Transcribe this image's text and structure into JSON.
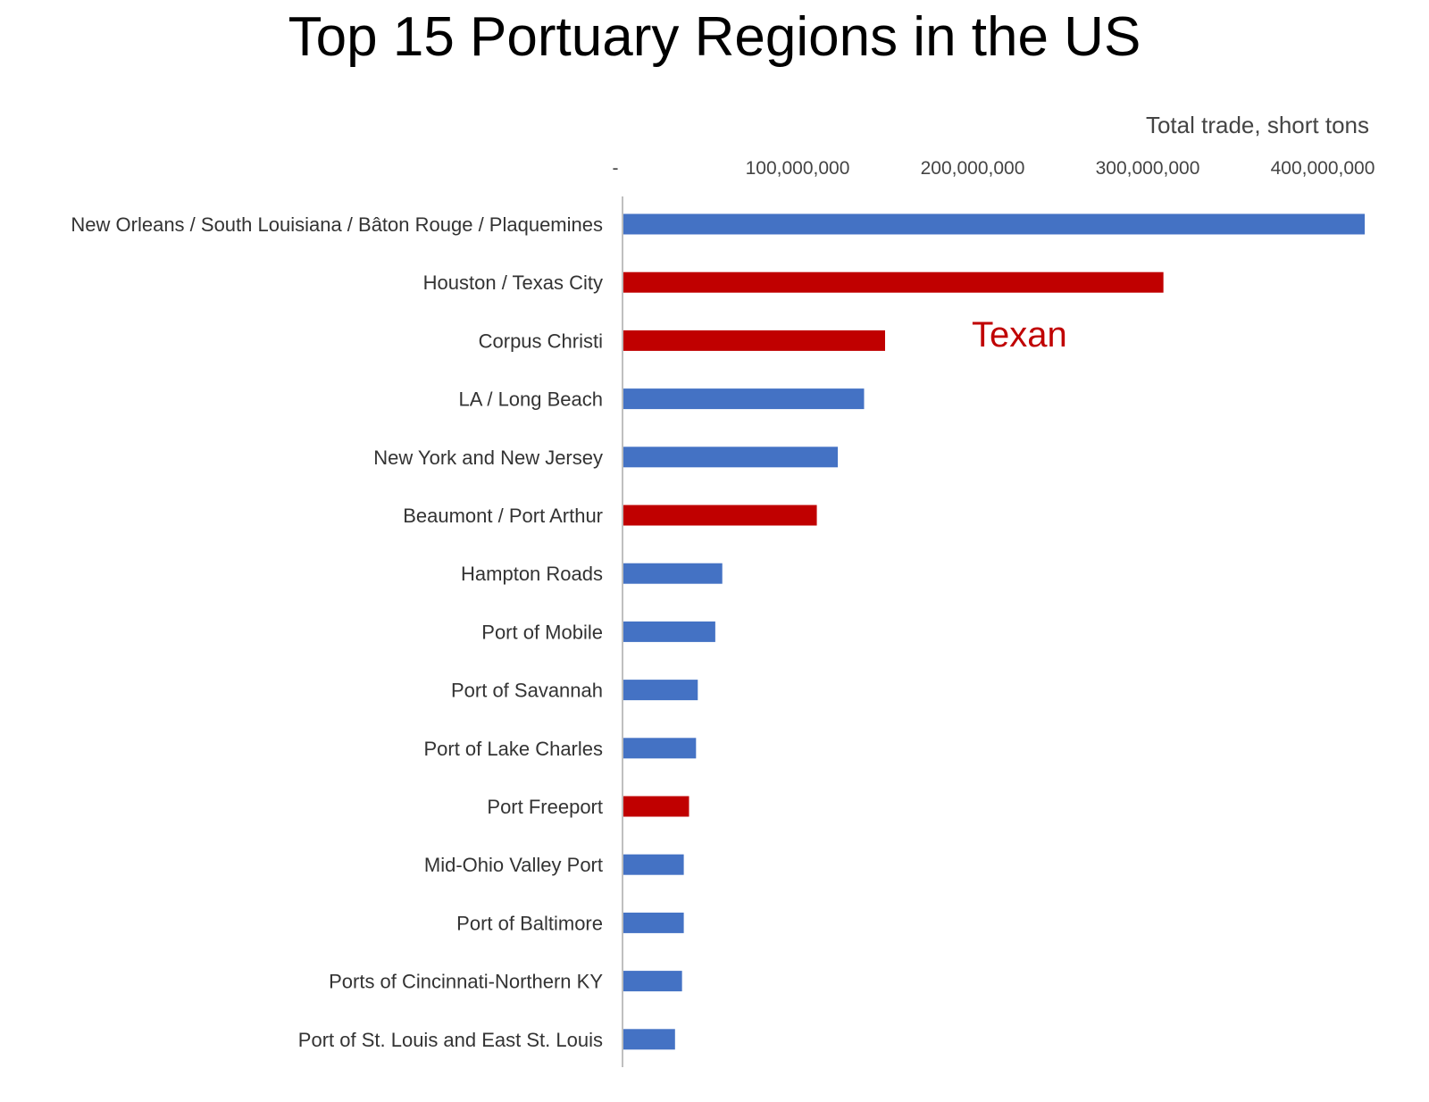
{
  "chart_data": {
    "type": "bar",
    "orientation": "horizontal",
    "title": "Top 15 Portuary Regions in the US",
    "xlabel": "Total trade, short tons",
    "ylabel": "",
    "xlim": [
      0,
      420000000
    ],
    "x_ticks": [
      {
        "value": 0,
        "label": "-"
      },
      {
        "value": 100000000,
        "label": "100,000,000"
      },
      {
        "value": 200000000,
        "label": "200,000,000"
      },
      {
        "value": 300000000,
        "label": "300,000,000"
      },
      {
        "value": 400000000,
        "label": "400,000,000"
      }
    ],
    "grid": false,
    "categories": [
      "New Orleans / South Louisiana / Bâton Rouge / Plaquemines",
      "Houston / Texas City",
      "Corpus Christi",
      "LA / Long Beach",
      "New York and New Jersey",
      "Beaumont / Port Arthur",
      "Hampton Roads",
      "Port of Mobile",
      "Port of Savannah",
      "Port of Lake Charles",
      "Port Freeport",
      "Mid-Ohio Valley Port",
      "Port of Baltimore",
      "Ports of Cincinnati-Northern KY",
      "Port of St. Louis and East St. Louis"
    ],
    "values": [
      424000000,
      309000000,
      150000000,
      138000000,
      123000000,
      111000000,
      57000000,
      53000000,
      43000000,
      42000000,
      38000000,
      35000000,
      35000000,
      34000000,
      30000000
    ],
    "texan": [
      false,
      true,
      true,
      false,
      false,
      true,
      false,
      false,
      false,
      false,
      true,
      false,
      false,
      false,
      false
    ],
    "annotation": {
      "text": "Texan",
      "color": "#c00000"
    },
    "colors": {
      "default": "#4472c4",
      "texan": "#c00000",
      "axis": "#bfbfbf"
    }
  }
}
